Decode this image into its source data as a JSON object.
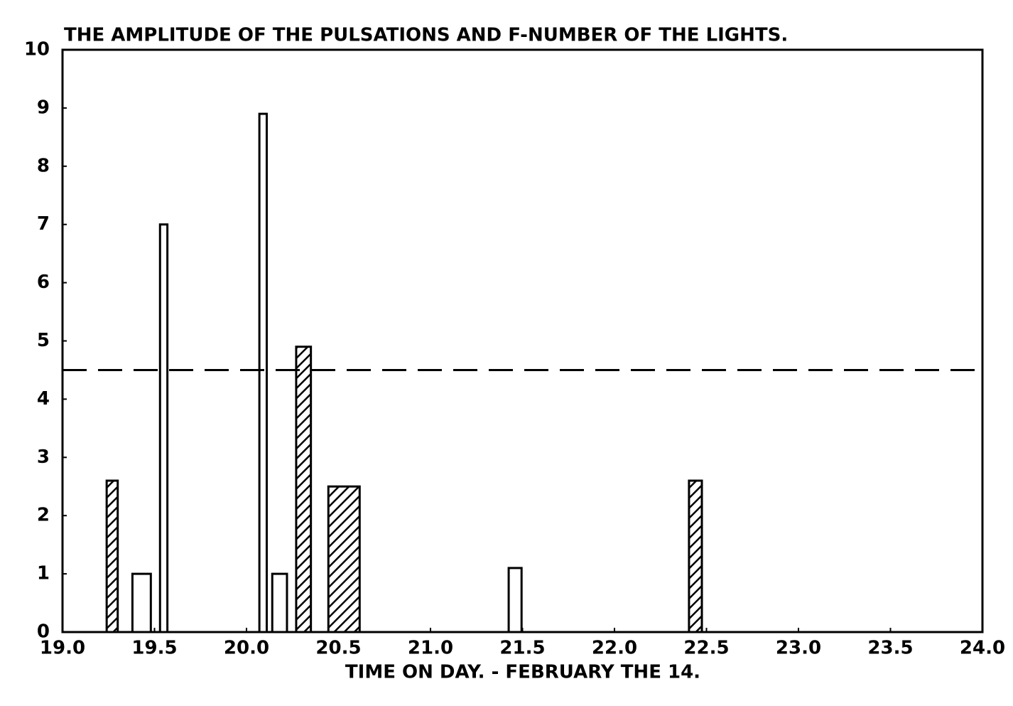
{
  "chart_data": {
    "type": "bar",
    "title": "THE AMPLITUDE OF THE PULSATIONS AND F-NUMBER OF THE LIGHTS.",
    "xlabel": "TIME ON DAY. - FEBRUARY THE 14.",
    "xlim": [
      19.0,
      24.0
    ],
    "xticks": [
      {
        "value": 19.0,
        "label": "19.0"
      },
      19.5,
      {
        "value": 20.0,
        "label": "20.0"
      },
      20.5,
      {
        "value": 21.0,
        "label": "21.0"
      },
      21.5,
      {
        "value": 22.0,
        "label": "22.0"
      },
      22.5,
      {
        "value": 23.0,
        "label": "23.0"
      },
      23.5,
      {
        "value": 24.0,
        "label": "24.0"
      }
    ],
    "ylim": [
      0,
      10
    ],
    "yticks": [
      0,
      1,
      2,
      3,
      4,
      5,
      6,
      7,
      8,
      9,
      10
    ],
    "reference_line": 4.5,
    "series": [
      {
        "pattern": "hatched",
        "x": [
          19.27,
          20.31,
          20.53,
          22.44
        ],
        "widths": [
          0.06,
          0.08,
          0.17,
          0.07
        ],
        "values": [
          2.6,
          4.9,
          2.5,
          2.6
        ]
      },
      {
        "pattern": "open",
        "x": [
          19.43,
          19.55,
          20.09,
          20.18,
          21.46
        ],
        "widths": [
          0.1,
          0.04,
          0.04,
          0.08,
          0.07
        ],
        "values": [
          1.0,
          7.0,
          8.9,
          1.0,
          1.1
        ]
      }
    ]
  }
}
